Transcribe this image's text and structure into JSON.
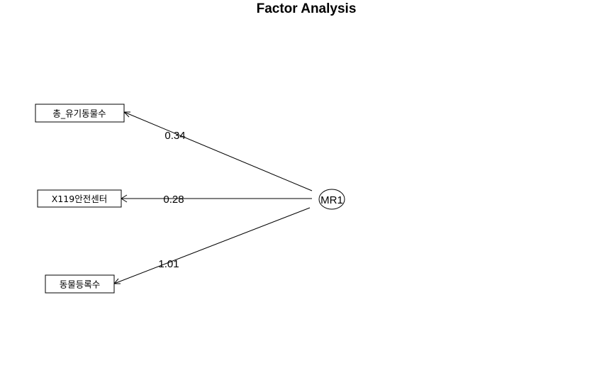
{
  "title": "Factor Analysis",
  "factor": {
    "label": "MR1"
  },
  "variables": [
    {
      "label": "총_유기동물수",
      "loading": "0.34"
    },
    {
      "label": "X119안전센터",
      "loading": "0.28"
    },
    {
      "label": "동물등록수",
      "loading": "1.01"
    }
  ]
}
